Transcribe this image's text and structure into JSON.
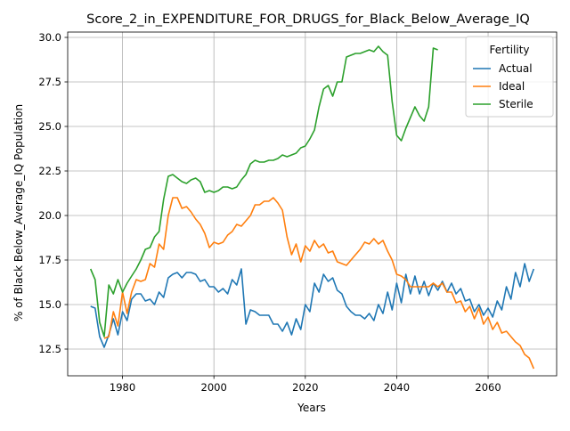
{
  "chart_data": {
    "type": "line",
    "title": "Score_2_in_EXPENDITURE_FOR_DRUGS_for_Black_Below_Average_IQ",
    "xlabel": "Years",
    "ylabel": "% of Black Below_Average_IQ Population",
    "xlim": [
      1968,
      2075
    ],
    "ylim": [
      11.0,
      30.3
    ],
    "xticks": [
      1980,
      2000,
      2020,
      2040,
      2060
    ],
    "yticks": [
      12.5,
      15.0,
      17.5,
      20.0,
      22.5,
      25.0,
      27.5,
      30.0
    ],
    "xtick_labels": [
      "1980",
      "2000",
      "2020",
      "2040",
      "2060"
    ],
    "ytick_labels": [
      "12.5",
      "15.0",
      "17.5",
      "20.0",
      "22.5",
      "25.0",
      "27.5",
      "30.0"
    ],
    "grid": true,
    "legend": {
      "title": "Fertility",
      "placement": "top-right"
    },
    "series": [
      {
        "name": "Actual",
        "color": "#1f77b4",
        "x": [
          1973,
          1974,
          1975,
          1976,
          1977,
          1978,
          1979,
          1980,
          1981,
          1982,
          1983,
          1984,
          1985,
          1986,
          1987,
          1988,
          1989,
          1990,
          1991,
          1992,
          1993,
          1994,
          1995,
          1996,
          1997,
          1998,
          1999,
          2000,
          2001,
          2002,
          2003,
          2004,
          2005,
          2006,
          2007,
          2008,
          2009,
          2010,
          2011,
          2012,
          2013,
          2014,
          2015,
          2016,
          2017,
          2018,
          2019,
          2020,
          2021,
          2022,
          2023,
          2024,
          2025,
          2026,
          2027,
          2028,
          2029,
          2030,
          2031,
          2032,
          2033,
          2034,
          2035,
          2036,
          2037,
          2038,
          2039,
          2040,
          2041,
          2042,
          2043,
          2044,
          2045,
          2046,
          2047,
          2048,
          2049,
          2050,
          2051,
          2052,
          2053,
          2054,
          2055,
          2056,
          2057,
          2058,
          2059,
          2060,
          2061,
          2062,
          2063,
          2064,
          2065,
          2066,
          2067,
          2068,
          2069,
          2070
        ],
        "values": [
          14.9,
          14.8,
          13.2,
          12.6,
          13.3,
          14.2,
          13.3,
          14.6,
          14.1,
          15.3,
          15.6,
          15.6,
          15.2,
          15.3,
          15.0,
          15.7,
          15.4,
          16.5,
          16.7,
          16.8,
          16.5,
          16.8,
          16.8,
          16.7,
          16.3,
          16.4,
          16.0,
          16.0,
          15.7,
          15.9,
          15.6,
          16.4,
          16.1,
          17.0,
          13.9,
          14.7,
          14.6,
          14.4,
          14.4,
          14.4,
          13.9,
          13.9,
          13.5,
          14.0,
          13.3,
          14.2,
          13.6,
          15.0,
          14.6,
          16.2,
          15.7,
          16.7,
          16.3,
          16.5,
          15.8,
          15.6,
          14.9,
          14.6,
          14.4,
          14.4,
          14.2,
          14.5,
          14.1,
          15.0,
          14.5,
          15.7,
          14.7,
          16.2,
          15.1,
          16.7,
          15.6,
          16.6,
          15.6,
          16.3,
          15.5,
          16.2,
          15.8,
          16.3,
          15.7,
          16.2,
          15.6,
          15.9,
          15.2,
          15.3,
          14.6,
          15.0,
          14.4,
          14.8,
          14.3,
          15.2,
          14.7,
          16.0,
          15.3,
          16.8,
          16.0,
          17.3,
          16.3,
          17.0
        ]
      },
      {
        "name": "Ideal",
        "color": "#ff7f0e",
        "x": [
          1976,
          1977,
          1978,
          1979,
          1980,
          1981,
          1982,
          1983,
          1984,
          1985,
          1986,
          1987,
          1988,
          1989,
          1990,
          1991,
          1992,
          1993,
          1994,
          1995,
          1996,
          1997,
          1998,
          1999,
          2000,
          2001,
          2002,
          2003,
          2004,
          2005,
          2006,
          2007,
          2008,
          2009,
          2010,
          2011,
          2012,
          2013,
          2014,
          2015,
          2016,
          2017,
          2018,
          2019,
          2020,
          2021,
          2022,
          2023,
          2024,
          2025,
          2026,
          2027,
          2028,
          2029,
          2030,
          2031,
          2032,
          2033,
          2034,
          2035,
          2036,
          2037,
          2038,
          2039,
          2040,
          2041,
          2042,
          2043,
          2044,
          2045,
          2046,
          2047,
          2048,
          2049,
          2050,
          2051,
          2052,
          2053,
          2054,
          2055,
          2056,
          2057,
          2058,
          2059,
          2060,
          2061,
          2062,
          2063,
          2064,
          2065,
          2066,
          2067,
          2068,
          2069,
          2070
        ],
        "values": [
          13.1,
          13.2,
          14.6,
          13.8,
          15.7,
          14.5,
          15.7,
          16.4,
          16.3,
          16.4,
          17.3,
          17.1,
          18.4,
          18.1,
          20.0,
          21.0,
          21.0,
          20.4,
          20.5,
          20.2,
          19.8,
          19.5,
          19.0,
          18.2,
          18.5,
          18.4,
          18.5,
          18.9,
          19.1,
          19.5,
          19.4,
          19.7,
          20.0,
          20.6,
          20.6,
          20.8,
          20.8,
          21.0,
          20.7,
          20.3,
          18.8,
          17.8,
          18.4,
          17.4,
          18.3,
          18.0,
          18.6,
          18.2,
          18.4,
          17.9,
          18.0,
          17.4,
          17.3,
          17.2,
          17.5,
          17.8,
          18.1,
          18.5,
          18.4,
          18.7,
          18.4,
          18.6,
          18.0,
          17.5,
          16.7,
          16.6,
          16.4,
          16.0,
          16.0,
          16.0,
          16.0,
          16.0,
          16.2,
          16.0,
          16.2,
          15.7,
          15.7,
          15.1,
          15.2,
          14.6,
          14.9,
          14.2,
          14.8,
          13.9,
          14.3,
          13.6,
          14.0,
          13.4,
          13.5,
          13.2,
          12.9,
          12.7,
          12.2,
          12.0,
          11.4
        ]
      },
      {
        "name": "Sterile",
        "color": "#2ca02c",
        "x": [
          1973,
          1974,
          1975,
          1976,
          1977,
          1978,
          1979,
          1980,
          1981,
          1982,
          1983,
          1984,
          1985,
          1986,
          1987,
          1988,
          1989,
          1990,
          1991,
          1992,
          1993,
          1994,
          1995,
          1996,
          1997,
          1998,
          1999,
          2000,
          2001,
          2002,
          2003,
          2004,
          2005,
          2006,
          2007,
          2008,
          2009,
          2010,
          2011,
          2012,
          2013,
          2014,
          2015,
          2016,
          2017,
          2018,
          2019,
          2020,
          2021,
          2022,
          2023,
          2024,
          2025,
          2026,
          2027,
          2028,
          2029,
          2030,
          2031,
          2032,
          2033,
          2034,
          2035,
          2036,
          2037,
          2038,
          2039,
          2040,
          2041,
          2042,
          2043,
          2044,
          2045,
          2046,
          2047,
          2048,
          2049
        ],
        "values": [
          17.0,
          16.4,
          14.0,
          13.2,
          16.1,
          15.6,
          16.4,
          15.7,
          16.2,
          16.6,
          17.0,
          17.5,
          18.1,
          18.2,
          18.8,
          19.1,
          20.9,
          22.2,
          22.3,
          22.1,
          21.9,
          21.8,
          22.0,
          22.1,
          21.9,
          21.3,
          21.4,
          21.3,
          21.4,
          21.6,
          21.6,
          21.5,
          21.6,
          22.0,
          22.3,
          22.9,
          23.1,
          23.0,
          23.0,
          23.1,
          23.1,
          23.2,
          23.4,
          23.3,
          23.4,
          23.5,
          23.8,
          23.9,
          24.3,
          24.8,
          26.1,
          27.1,
          27.3,
          26.7,
          27.5,
          27.5,
          28.9,
          29.0,
          29.1,
          29.1,
          29.2,
          29.3,
          29.2,
          29.5,
          29.2,
          29.0,
          26.4,
          24.5,
          24.2,
          24.9,
          25.5,
          26.1,
          25.6,
          25.3,
          26.1,
          29.4,
          29.3
        ]
      }
    ]
  }
}
